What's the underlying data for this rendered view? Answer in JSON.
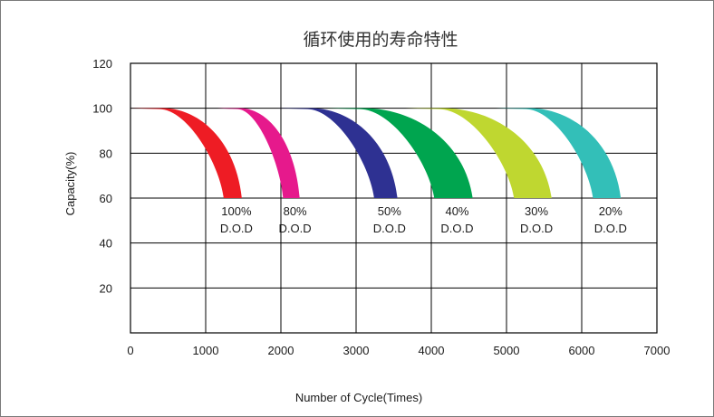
{
  "chart_data": {
    "type": "area",
    "title": "循环使用的寿命特性",
    "xlabel": "Number of Cycle(Times)",
    "ylabel": "Capacity(%)",
    "xlim": [
      0,
      7000
    ],
    "ylim": [
      0,
      120
    ],
    "x_ticks": [
      "0",
      "1000",
      "2000",
      "3000",
      "4000",
      "5000",
      "6000",
      "7000"
    ],
    "y_ticks": [
      "20",
      "40",
      "60",
      "80",
      "100",
      "120"
    ],
    "grid": true,
    "series": [
      {
        "label": [
          "100%",
          "D.O.D"
        ],
        "color": "#ee1c24",
        "start": 0,
        "inner_end": 1240,
        "outer_end": 1480
      },
      {
        "label": [
          "80%",
          "D.O.D"
        ],
        "color": "#e6198c",
        "start": 1150,
        "inner_end": 2030,
        "outer_end": 2250
      },
      {
        "label": [
          "50%",
          "D.O.D"
        ],
        "color": "#2e3192",
        "start": 1950,
        "inner_end": 3240,
        "outer_end": 3550
      },
      {
        "label": [
          "40%",
          "D.O.D"
        ],
        "color": "#00a54f",
        "start": 2600,
        "inner_end": 4040,
        "outer_end": 4550
      },
      {
        "label": [
          "30%",
          "D.O.D"
        ],
        "color": "#bfd730",
        "start": 3650,
        "inner_end": 5100,
        "outer_end": 5600
      },
      {
        "label": [
          "20%",
          "D.O.D"
        ],
        "color": "#33bfb8",
        "start": 4850,
        "inner_end": 6150,
        "outer_end": 6520
      }
    ]
  }
}
